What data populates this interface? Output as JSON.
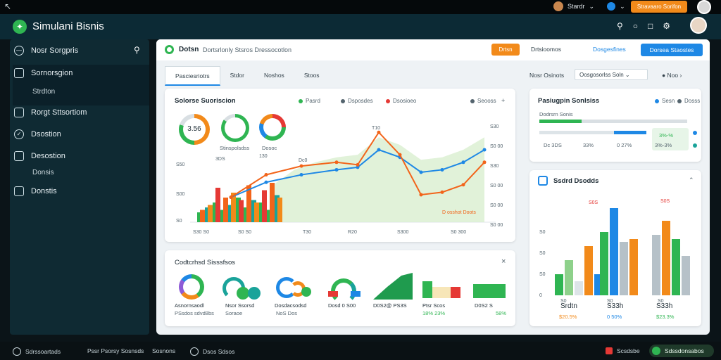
{
  "topbar": {
    "user_label": "Stardr",
    "action_label": "Stravaaro Sorifon"
  },
  "header": {
    "title": "Simulani Bisnis"
  },
  "sidebar": {
    "items": [
      {
        "label": "Nosr Sorgpris",
        "icon": "clock-icon"
      },
      {
        "label": "Sornorsgion",
        "icon": "calendar-icon"
      },
      {
        "label": "Strdton",
        "sub": true
      },
      {
        "label": "Rorgt Sttsortiom",
        "icon": "document-icon"
      },
      {
        "label": "Dsostion",
        "icon": "check-icon"
      },
      {
        "label": "Desostion",
        "icon": "table-icon"
      },
      {
        "label": "Donsis",
        "sub": true
      },
      {
        "label": "Donstis",
        "icon": "chart-icon"
      }
    ]
  },
  "main_header": {
    "title": "Dotsn",
    "subtitle": "Dortsrlonly Stsros Dressocotlon",
    "orange_btn": "Drtsn",
    "link1": "Drtsioomos",
    "link2": "Dosgesfines",
    "blue_btn": "Dorsea Staostes"
  },
  "tabs": [
    "Pasciesriotrs",
    "Stdor",
    "Noshos",
    "Stoos"
  ],
  "toolbar": {
    "label": "Nosr Osinots",
    "select_value": "Oosgosorlss Soln",
    "nav_label": "Noo"
  },
  "sales_card": {
    "title": "Solorse Suoriscion",
    "legend": [
      "Pasrd",
      "Dsposdes",
      "Dsosioeo",
      "Seooss"
    ],
    "donut_center": "3.56",
    "donut_labels": [
      "Stinspolsdss",
      "Dosoc"
    ],
    "annotation": "D osshot Doots",
    "point_labels": [
      "3DS",
      "130",
      "Dc0",
      "T10"
    ],
    "y_ticks": [
      "S50",
      "S00",
      "S0"
    ],
    "x_labels": [
      "S30 S0",
      "S0 S0",
      "T30",
      "R20",
      "S300",
      "S0 300"
    ],
    "right_values": [
      "S30",
      "S0 00",
      "S30",
      "S0 00",
      "S0 00",
      "S0 00"
    ]
  },
  "chart_data": {
    "type": "bar",
    "series": [
      {
        "name": "Pasrd",
        "values": [
          4,
          6,
          8,
          5,
          7,
          10,
          6,
          9,
          8,
          5,
          11
        ]
      },
      {
        "name": "Dsosioeo",
        "values": [
          5,
          7,
          14,
          10,
          12,
          9,
          15,
          8,
          13,
          16,
          10
        ]
      }
    ],
    "line_series": [
      {
        "name": "Pasrd",
        "values": [
          20,
          32,
          38,
          42,
          44,
          58,
          52,
          40,
          42,
          48,
          58
        ]
      },
      {
        "name": "Dsosioeo",
        "values": [
          20,
          38,
          45,
          48,
          46,
          72,
          54,
          22,
          24,
          30,
          48
        ]
      }
    ]
  },
  "kpi_card": {
    "title": "Pasiugpin Sonlsiss",
    "labels": [
      "Sesn",
      "Dosss"
    ],
    "sub_labels": [
      "Dodrsrn Sonis"
    ],
    "values": [
      "Dc 3DS",
      "33%",
      "0 27%",
      "3%-3%"
    ],
    "boxed": "3%-%"
  },
  "overall_card": {
    "title": "Codtcrhsd Sisssfsos",
    "items": [
      {
        "label": "Asnornsaodl",
        "sub": "PSsdos sdvd8bs"
      },
      {
        "label": "Nsor Ssorsd",
        "sub": "Soraoe"
      },
      {
        "label": "Dosdacsodsd",
        "sub": "NoS Dos"
      },
      {
        "label": "Dosd 0 S00",
        "sub": ""
      },
      {
        "label": "D0S2@ PS3S",
        "sub": ""
      },
      {
        "label": "Ptsr Scos",
        "sub": "18% 23%"
      },
      {
        "label": "D0S2 S",
        "sub": "58%"
      }
    ]
  },
  "bar_card": {
    "title": "Ssdrd Dsodds",
    "y_ticks": [
      "S0",
      "S0",
      "S0",
      "0"
    ],
    "top_labels": [
      "S0S",
      "S0S",
      "S0S"
    ],
    "summary": [
      {
        "label": "Srdtn",
        "value": "$20.5%"
      },
      {
        "label": "S33h",
        "value": "0 50%"
      },
      {
        "label": "S33h",
        "value": "$23.3%"
      }
    ]
  },
  "bottom": {
    "items": [
      "Sdrssoartads",
      "Pssr Psorsy Sosnsds",
      "Sosnons",
      "Dsos Sdsos",
      "Scsdsbe",
      "Sdssdonsabos"
    ]
  },
  "colors": {
    "green": "#2fb552",
    "orange": "#f28a1a",
    "blue": "#1e88e5",
    "red": "#e53935",
    "light_green": "#8ed18b",
    "gray": "#b6c1c8"
  }
}
